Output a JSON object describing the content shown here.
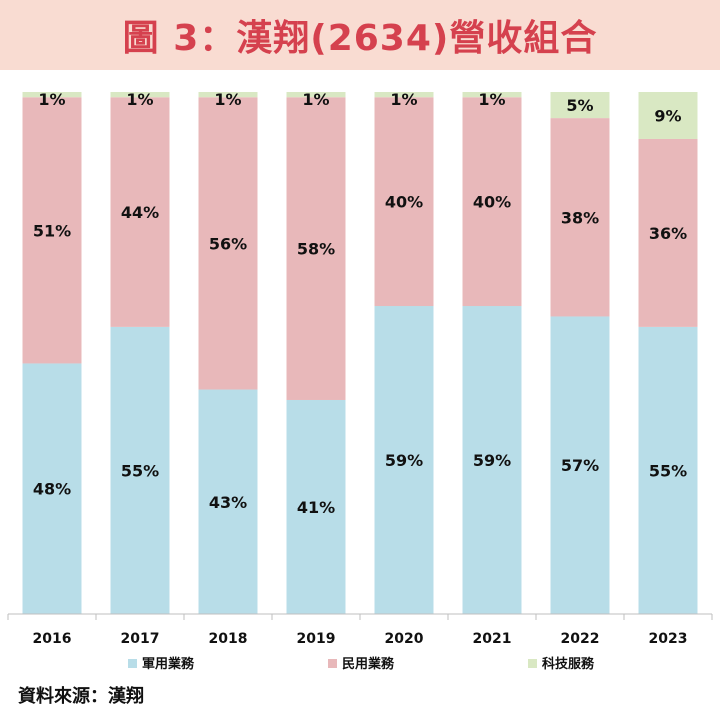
{
  "title": "圖 3：漢翔(2634)營收組合",
  "source": "資料來源：漢翔",
  "colors": {
    "title_bg": "#f9dcd2",
    "title_text": "#d5414e"
  },
  "chart_data": {
    "type": "bar",
    "stacked": true,
    "percent_stacked": true,
    "categories": [
      "2016",
      "2017",
      "2018",
      "2019",
      "2020",
      "2021",
      "2022",
      "2023"
    ],
    "series": [
      {
        "name": "軍用業務",
        "color": "#b8dde8",
        "values": [
          48,
          55,
          43,
          41,
          59,
          59,
          57,
          55
        ]
      },
      {
        "name": "民用業務",
        "color": "#e8b8ba",
        "values": [
          51,
          44,
          56,
          58,
          40,
          40,
          38,
          36
        ]
      },
      {
        "name": "科技服務",
        "color": "#d9e8c3",
        "values": [
          1,
          1,
          1,
          1,
          1,
          1,
          5,
          9
        ]
      }
    ],
    "ylim": [
      0,
      100
    ],
    "value_suffix": "%",
    "legend": "bottom",
    "grid": false
  }
}
